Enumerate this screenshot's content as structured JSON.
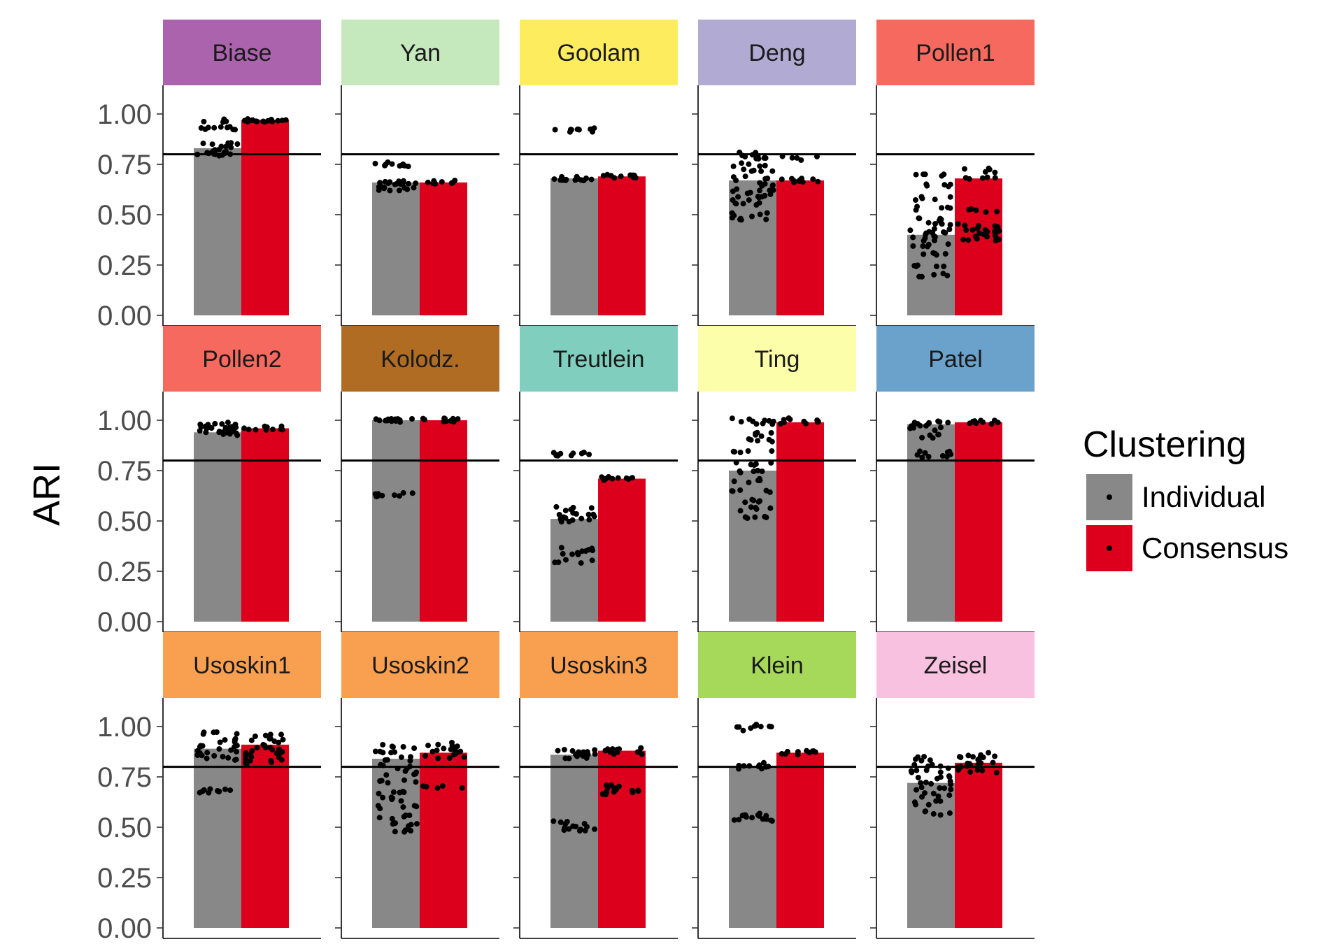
{
  "chart_data": {
    "type": "bar",
    "ylabel": "ARI",
    "ylim": [
      0,
      1
    ],
    "yticks": [
      "0.00",
      "0.25",
      "0.50",
      "0.75",
      "1.00"
    ],
    "reference_line": 0.8,
    "grid": false,
    "legend": {
      "title": "Clustering",
      "position": "right",
      "entries": [
        {
          "label": "Individual",
          "color": "#888888"
        },
        {
          "label": "Consensus",
          "color": "#dc001c"
        }
      ]
    },
    "point_color": "#000000",
    "panels": [
      {
        "name": "Biase",
        "strip_color": "#ab63ae",
        "individual": 0.83,
        "consensus": 0.97,
        "ind_points": [
          0.97,
          0.93,
          0.93,
          0.85,
          0.83,
          0.81,
          0.8,
          0.8
        ],
        "cons_points": [
          0.97,
          0.97,
          0.97
        ]
      },
      {
        "name": "Yan",
        "strip_color": "#c5e9bd",
        "individual": 0.66,
        "consensus": 0.66,
        "ind_points": [
          0.75,
          0.75,
          0.66,
          0.66,
          0.65,
          0.63,
          0.63
        ],
        "cons_points": [
          0.66,
          0.66
        ]
      },
      {
        "name": "Goolam",
        "strip_color": "#fded5e",
        "individual": 0.68,
        "consensus": 0.69,
        "ind_points": [
          0.92,
          0.92,
          0.68,
          0.68,
          0.68
        ],
        "cons_points": [
          0.69,
          0.69
        ]
      },
      {
        "name": "Deng",
        "strip_color": "#b1aad2",
        "individual": 0.67,
        "consensus": 0.67,
        "ind_points": [
          0.8,
          0.78,
          0.75,
          0.72,
          0.68,
          0.65,
          0.62,
          0.6,
          0.58,
          0.55,
          0.5,
          0.48
        ],
        "cons_points": [
          0.78,
          0.67,
          0.67
        ]
      },
      {
        "name": "Pollen1",
        "strip_color": "#f6695e",
        "individual": 0.4,
        "consensus": 0.68,
        "ind_points": [
          0.7,
          0.65,
          0.58,
          0.53,
          0.48,
          0.45,
          0.42,
          0.4,
          0.38,
          0.35,
          0.3,
          0.25,
          0.2
        ],
        "cons_points": [
          0.72,
          0.68,
          0.52,
          0.45,
          0.43,
          0.42,
          0.4,
          0.38
        ]
      },
      {
        "name": "Pollen2",
        "strip_color": "#f6695e",
        "individual": 0.94,
        "consensus": 0.96,
        "ind_points": [
          0.98,
          0.97,
          0.96,
          0.95,
          0.94,
          0.93
        ],
        "cons_points": [
          0.96,
          0.96
        ]
      },
      {
        "name": "Kolodz.",
        "strip_color": "#b06c23",
        "individual": 1.0,
        "consensus": 1.0,
        "ind_points": [
          1.0,
          1.0,
          1.0,
          0.63,
          0.63
        ],
        "cons_points": [
          1.0,
          1.0
        ]
      },
      {
        "name": "Treutlein",
        "strip_color": "#80cfbe",
        "individual": 0.51,
        "consensus": 0.71,
        "ind_points": [
          0.83,
          0.83,
          0.56,
          0.53,
          0.52,
          0.5,
          0.36,
          0.34,
          0.3
        ],
        "cons_points": [
          0.71,
          0.71
        ]
      },
      {
        "name": "Ting",
        "strip_color": "#fdfeaa",
        "individual": 0.75,
        "consensus": 0.99,
        "ind_points": [
          1.0,
          0.99,
          0.93,
          0.9,
          0.85,
          0.78,
          0.75,
          0.7,
          0.65,
          0.6,
          0.56,
          0.52
        ],
        "cons_points": [
          1.0,
          0.99
        ]
      },
      {
        "name": "Patel",
        "strip_color": "#6aa2cc",
        "individual": 0.98,
        "consensus": 0.99,
        "ind_points": [
          0.99,
          0.98,
          0.96,
          0.92,
          0.84,
          0.82
        ],
        "cons_points": [
          0.99,
          0.99
        ]
      },
      {
        "name": "Usoskin1",
        "strip_color": "#f9a050",
        "individual": 0.89,
        "consensus": 0.91,
        "ind_points": [
          0.97,
          0.93,
          0.9,
          0.88,
          0.86,
          0.84,
          0.68,
          0.68
        ],
        "cons_points": [
          0.95,
          0.93,
          0.9,
          0.88,
          0.86,
          0.84,
          0.82
        ]
      },
      {
        "name": "Usoskin2",
        "strip_color": "#f9a050",
        "individual": 0.84,
        "consensus": 0.87,
        "ind_points": [
          0.9,
          0.87,
          0.84,
          0.8,
          0.77,
          0.73,
          0.67,
          0.64,
          0.6,
          0.55,
          0.51,
          0.48
        ],
        "cons_points": [
          0.91,
          0.89,
          0.87,
          0.85,
          0.7
        ]
      },
      {
        "name": "Usoskin3",
        "strip_color": "#f9a050",
        "individual": 0.86,
        "consensus": 0.88,
        "ind_points": [
          0.88,
          0.87,
          0.86,
          0.85,
          0.52,
          0.5,
          0.48
        ],
        "cons_points": [
          0.89,
          0.88,
          0.87,
          0.7,
          0.68,
          0.67
        ]
      },
      {
        "name": "Klein",
        "strip_color": "#a6d95a",
        "individual": 0.8,
        "consensus": 0.87,
        "ind_points": [
          1.0,
          0.99,
          0.81,
          0.8,
          0.56,
          0.55,
          0.54
        ],
        "cons_points": [
          0.87,
          0.87
        ]
      },
      {
        "name": "Zeisel",
        "strip_color": "#f7c1df",
        "individual": 0.72,
        "consensus": 0.82,
        "ind_points": [
          0.84,
          0.8,
          0.78,
          0.75,
          0.72,
          0.69,
          0.66,
          0.62,
          0.57
        ],
        "cons_points": [
          0.86,
          0.84,
          0.82,
          0.8,
          0.78
        ]
      }
    ]
  }
}
